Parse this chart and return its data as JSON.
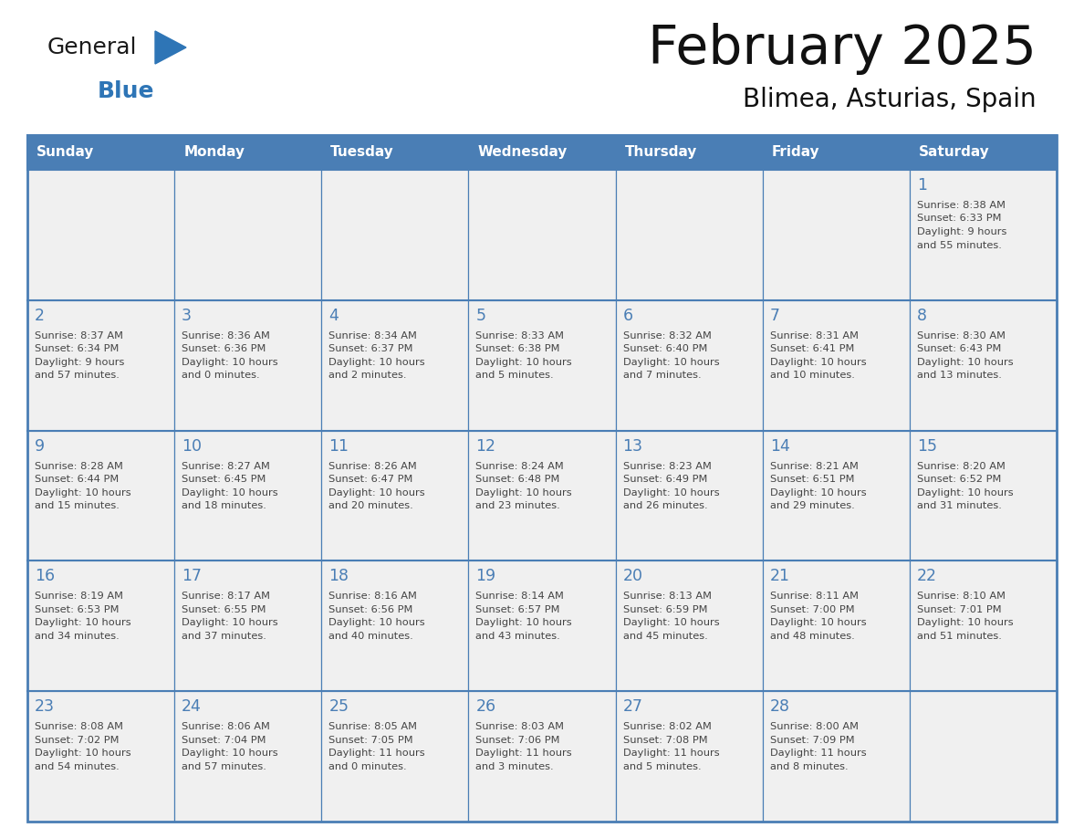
{
  "title": "February 2025",
  "subtitle": "Blimea, Asturias, Spain",
  "days_of_week": [
    "Sunday",
    "Monday",
    "Tuesday",
    "Wednesday",
    "Thursday",
    "Friday",
    "Saturday"
  ],
  "header_bg": "#4a7eb5",
  "header_text": "#ffffff",
  "cell_bg": "#f0f0f0",
  "border_color": "#4a7eb5",
  "day_number_color": "#4a7eb5",
  "text_color": "#444444",
  "calendar": [
    [
      null,
      null,
      null,
      null,
      null,
      null,
      {
        "day": 1,
        "sunrise": "8:38 AM",
        "sunset": "6:33 PM",
        "daylight": "9 hours and 55 minutes."
      }
    ],
    [
      {
        "day": 2,
        "sunrise": "8:37 AM",
        "sunset": "6:34 PM",
        "daylight": "9 hours and 57 minutes."
      },
      {
        "day": 3,
        "sunrise": "8:36 AM",
        "sunset": "6:36 PM",
        "daylight": "10 hours and 0 minutes."
      },
      {
        "day": 4,
        "sunrise": "8:34 AM",
        "sunset": "6:37 PM",
        "daylight": "10 hours and 2 minutes."
      },
      {
        "day": 5,
        "sunrise": "8:33 AM",
        "sunset": "6:38 PM",
        "daylight": "10 hours and 5 minutes."
      },
      {
        "day": 6,
        "sunrise": "8:32 AM",
        "sunset": "6:40 PM",
        "daylight": "10 hours and 7 minutes."
      },
      {
        "day": 7,
        "sunrise": "8:31 AM",
        "sunset": "6:41 PM",
        "daylight": "10 hours and 10 minutes."
      },
      {
        "day": 8,
        "sunrise": "8:30 AM",
        "sunset": "6:43 PM",
        "daylight": "10 hours and 13 minutes."
      }
    ],
    [
      {
        "day": 9,
        "sunrise": "8:28 AM",
        "sunset": "6:44 PM",
        "daylight": "10 hours and 15 minutes."
      },
      {
        "day": 10,
        "sunrise": "8:27 AM",
        "sunset": "6:45 PM",
        "daylight": "10 hours and 18 minutes."
      },
      {
        "day": 11,
        "sunrise": "8:26 AM",
        "sunset": "6:47 PM",
        "daylight": "10 hours and 20 minutes."
      },
      {
        "day": 12,
        "sunrise": "8:24 AM",
        "sunset": "6:48 PM",
        "daylight": "10 hours and 23 minutes."
      },
      {
        "day": 13,
        "sunrise": "8:23 AM",
        "sunset": "6:49 PM",
        "daylight": "10 hours and 26 minutes."
      },
      {
        "day": 14,
        "sunrise": "8:21 AM",
        "sunset": "6:51 PM",
        "daylight": "10 hours and 29 minutes."
      },
      {
        "day": 15,
        "sunrise": "8:20 AM",
        "sunset": "6:52 PM",
        "daylight": "10 hours and 31 minutes."
      }
    ],
    [
      {
        "day": 16,
        "sunrise": "8:19 AM",
        "sunset": "6:53 PM",
        "daylight": "10 hours and 34 minutes."
      },
      {
        "day": 17,
        "sunrise": "8:17 AM",
        "sunset": "6:55 PM",
        "daylight": "10 hours and 37 minutes."
      },
      {
        "day": 18,
        "sunrise": "8:16 AM",
        "sunset": "6:56 PM",
        "daylight": "10 hours and 40 minutes."
      },
      {
        "day": 19,
        "sunrise": "8:14 AM",
        "sunset": "6:57 PM",
        "daylight": "10 hours and 43 minutes."
      },
      {
        "day": 20,
        "sunrise": "8:13 AM",
        "sunset": "6:59 PM",
        "daylight": "10 hours and 45 minutes."
      },
      {
        "day": 21,
        "sunrise": "8:11 AM",
        "sunset": "7:00 PM",
        "daylight": "10 hours and 48 minutes."
      },
      {
        "day": 22,
        "sunrise": "8:10 AM",
        "sunset": "7:01 PM",
        "daylight": "10 hours and 51 minutes."
      }
    ],
    [
      {
        "day": 23,
        "sunrise": "8:08 AM",
        "sunset": "7:02 PM",
        "daylight": "10 hours and 54 minutes."
      },
      {
        "day": 24,
        "sunrise": "8:06 AM",
        "sunset": "7:04 PM",
        "daylight": "10 hours and 57 minutes."
      },
      {
        "day": 25,
        "sunrise": "8:05 AM",
        "sunset": "7:05 PM",
        "daylight": "11 hours and 0 minutes."
      },
      {
        "day": 26,
        "sunrise": "8:03 AM",
        "sunset": "7:06 PM",
        "daylight": "11 hours and 3 minutes."
      },
      {
        "day": 27,
        "sunrise": "8:02 AM",
        "sunset": "7:08 PM",
        "daylight": "11 hours and 5 minutes."
      },
      {
        "day": 28,
        "sunrise": "8:00 AM",
        "sunset": "7:09 PM",
        "daylight": "11 hours and 8 minutes."
      },
      null
    ]
  ],
  "logo_general_color": "#1a1a1a",
  "logo_blue_color": "#2e75b6",
  "logo_triangle_color": "#2e75b6",
  "fig_width": 11.88,
  "fig_height": 9.18,
  "dpi": 100
}
